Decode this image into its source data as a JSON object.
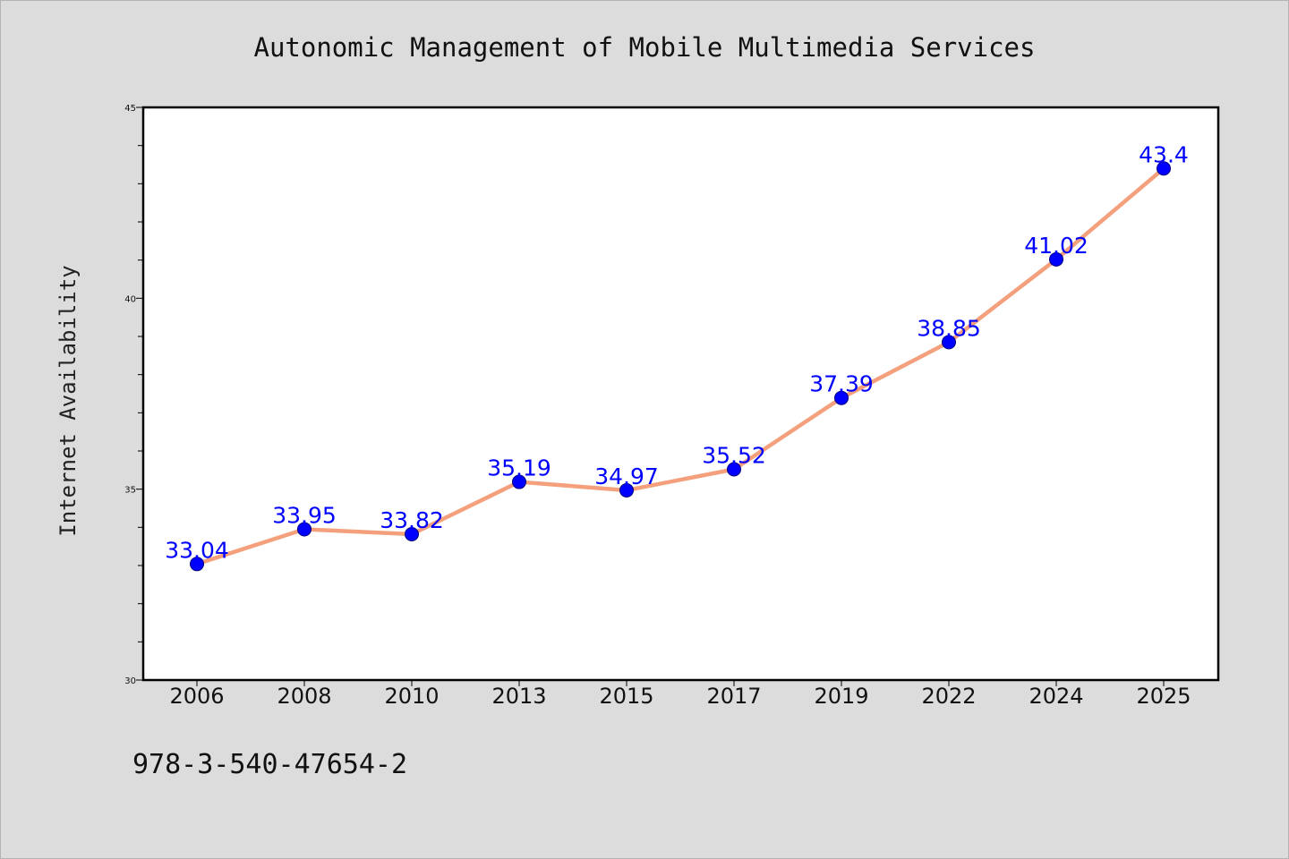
{
  "chart_data": {
    "type": "line",
    "title": "Autonomic Management of Mobile Multimedia Services",
    "xlabel": "",
    "ylabel": "Internet Availability",
    "categories": [
      "2006",
      "2008",
      "2010",
      "2013",
      "2015",
      "2017",
      "2019",
      "2022",
      "2024",
      "2025"
    ],
    "series": [
      {
        "values": [
          33.04,
          33.95,
          33.82,
          35.19,
          34.97,
          35.52,
          37.39,
          38.85,
          41.02,
          43.4
        ],
        "data_labels": [
          "33.04",
          "33.95",
          "33.82",
          "35.19",
          "34.97",
          "35.52",
          "37.39",
          "38.85",
          "41.02",
          "43.4"
        ]
      }
    ],
    "ylim": [
      30,
      45
    ],
    "yticks": [
      "30",
      "35",
      "40",
      "45"
    ],
    "grid": false,
    "colors": {
      "line": "#f4a07c",
      "marker": "#0000ff",
      "marker_edge": "#000080",
      "data_label": "#0000ff",
      "background": "#dcdcdc",
      "plot_background": "#ffffff"
    }
  },
  "footer": {
    "text": "978-3-540-47654-2"
  }
}
